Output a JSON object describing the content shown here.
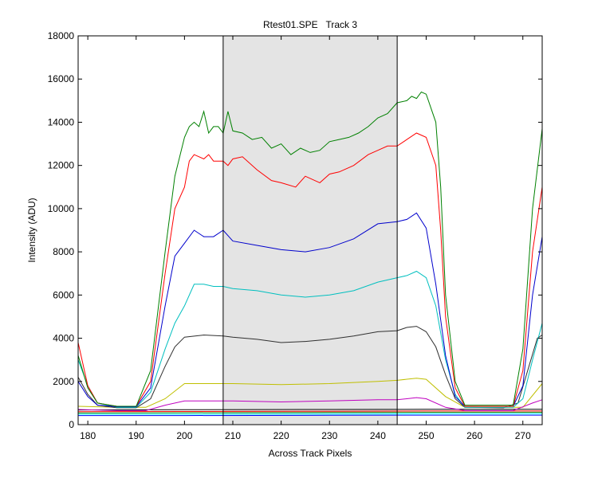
{
  "chart_data": {
    "type": "line",
    "title": "Rtest01.SPE   Track 3",
    "xlabel": "Across Track Pixels",
    "ylabel": "Intensity (ADU)",
    "xlim": [
      178,
      274
    ],
    "ylim": [
      0,
      18000
    ],
    "xticks": [
      180,
      190,
      200,
      210,
      220,
      230,
      240,
      250,
      260,
      270
    ],
    "yticks": [
      0,
      2000,
      4000,
      6000,
      8000,
      10000,
      12000,
      14000,
      16000,
      18000
    ],
    "grid": false,
    "shaded_region": [
      208,
      244
    ],
    "series": [
      {
        "color": "#0000ff",
        "points": [
          [
            178,
            420
          ],
          [
            200,
            420
          ],
          [
            230,
            430
          ],
          [
            250,
            440
          ],
          [
            274,
            440
          ]
        ]
      },
      {
        "color": "#00ffff",
        "points": [
          [
            178,
            480
          ],
          [
            200,
            480
          ],
          [
            230,
            490
          ],
          [
            250,
            500
          ],
          [
            274,
            500
          ]
        ]
      },
      {
        "color": "#008000",
        "points": [
          [
            178,
            540
          ],
          [
            200,
            550
          ],
          [
            230,
            560
          ],
          [
            250,
            570
          ],
          [
            274,
            570
          ]
        ]
      },
      {
        "color": "#ff0000",
        "points": [
          [
            178,
            600
          ],
          [
            200,
            610
          ],
          [
            230,
            620
          ],
          [
            250,
            630
          ],
          [
            274,
            630
          ]
        ]
      },
      {
        "color": "#000000",
        "points": [
          [
            178,
            680
          ],
          [
            200,
            690
          ],
          [
            230,
            700
          ],
          [
            250,
            710
          ],
          [
            274,
            710
          ]
        ]
      },
      {
        "color": "#bfbf00",
        "points": [
          [
            178,
            850
          ],
          [
            186,
            800
          ],
          [
            192,
            800
          ],
          [
            196,
            1200
          ],
          [
            200,
            1900
          ],
          [
            204,
            1900
          ],
          [
            210,
            1900
          ],
          [
            220,
            1850
          ],
          [
            230,
            1900
          ],
          [
            240,
            2000
          ],
          [
            244,
            2050
          ],
          [
            248,
            2150
          ],
          [
            250,
            2100
          ],
          [
            254,
            1300
          ],
          [
            258,
            800
          ],
          [
            266,
            800
          ],
          [
            270,
            800
          ],
          [
            274,
            1900
          ]
        ]
      },
      {
        "color": "#bf00bf",
        "points": [
          [
            178,
            700
          ],
          [
            186,
            650
          ],
          [
            192,
            650
          ],
          [
            196,
            900
          ],
          [
            200,
            1100
          ],
          [
            210,
            1100
          ],
          [
            220,
            1050
          ],
          [
            230,
            1100
          ],
          [
            240,
            1150
          ],
          [
            244,
            1150
          ],
          [
            248,
            1250
          ],
          [
            250,
            1200
          ],
          [
            254,
            800
          ],
          [
            258,
            650
          ],
          [
            268,
            650
          ],
          [
            272,
            1000
          ],
          [
            274,
            1150
          ]
        ]
      },
      {
        "color": "#303030",
        "points": [
          [
            178,
            2200
          ],
          [
            180,
            1400
          ],
          [
            182,
            900
          ],
          [
            186,
            780
          ],
          [
            190,
            780
          ],
          [
            193,
            1200
          ],
          [
            196,
            2700
          ],
          [
            198,
            3600
          ],
          [
            200,
            4050
          ],
          [
            204,
            4150
          ],
          [
            208,
            4100
          ],
          [
            210,
            4050
          ],
          [
            215,
            3950
          ],
          [
            220,
            3800
          ],
          [
            225,
            3850
          ],
          [
            230,
            3950
          ],
          [
            235,
            4100
          ],
          [
            240,
            4300
          ],
          [
            244,
            4350
          ],
          [
            246,
            4500
          ],
          [
            248,
            4550
          ],
          [
            250,
            4300
          ],
          [
            252,
            3600
          ],
          [
            254,
            2300
          ],
          [
            256,
            1200
          ],
          [
            258,
            800
          ],
          [
            266,
            780
          ],
          [
            269,
            1000
          ],
          [
            271,
            2500
          ],
          [
            273,
            4000
          ],
          [
            274,
            4150
          ]
        ]
      },
      {
        "color": "#00bfbf",
        "points": [
          [
            178,
            3000
          ],
          [
            180,
            1800
          ],
          [
            182,
            1000
          ],
          [
            186,
            800
          ],
          [
            190,
            800
          ],
          [
            193,
            1500
          ],
          [
            196,
            3500
          ],
          [
            198,
            4700
          ],
          [
            200,
            5500
          ],
          [
            202,
            6500
          ],
          [
            204,
            6500
          ],
          [
            206,
            6400
          ],
          [
            208,
            6400
          ],
          [
            210,
            6300
          ],
          [
            215,
            6200
          ],
          [
            220,
            6000
          ],
          [
            225,
            5900
          ],
          [
            230,
            6000
          ],
          [
            235,
            6200
          ],
          [
            240,
            6600
          ],
          [
            244,
            6800
          ],
          [
            246,
            6900
          ],
          [
            248,
            7100
          ],
          [
            250,
            6800
          ],
          [
            252,
            5500
          ],
          [
            254,
            3000
          ],
          [
            256,
            1400
          ],
          [
            258,
            800
          ],
          [
            268,
            800
          ],
          [
            270,
            1200
          ],
          [
            272,
            3000
          ],
          [
            274,
            4700
          ]
        ]
      },
      {
        "color": "#0000cc",
        "points": [
          [
            178,
            2000
          ],
          [
            180,
            1300
          ],
          [
            182,
            900
          ],
          [
            186,
            830
          ],
          [
            190,
            830
          ],
          [
            193,
            1700
          ],
          [
            196,
            5500
          ],
          [
            198,
            7800
          ],
          [
            200,
            8400
          ],
          [
            202,
            9000
          ],
          [
            204,
            8700
          ],
          [
            206,
            8700
          ],
          [
            208,
            9000
          ],
          [
            210,
            8500
          ],
          [
            215,
            8300
          ],
          [
            220,
            8100
          ],
          [
            225,
            8000
          ],
          [
            230,
            8200
          ],
          [
            235,
            8600
          ],
          [
            240,
            9300
          ],
          [
            244,
            9400
          ],
          [
            246,
            9500
          ],
          [
            248,
            9800
          ],
          [
            250,
            9100
          ],
          [
            252,
            6500
          ],
          [
            254,
            3200
          ],
          [
            256,
            1300
          ],
          [
            258,
            850
          ],
          [
            268,
            850
          ],
          [
            270,
            1800
          ],
          [
            272,
            6000
          ],
          [
            274,
            8700
          ]
        ]
      },
      {
        "color": "#ff0000",
        "points": [
          [
            178,
            3800
          ],
          [
            180,
            1800
          ],
          [
            182,
            1000
          ],
          [
            186,
            850
          ],
          [
            190,
            850
          ],
          [
            193,
            2000
          ],
          [
            196,
            7000
          ],
          [
            198,
            10000
          ],
          [
            200,
            11000
          ],
          [
            201,
            12200
          ],
          [
            202,
            12500
          ],
          [
            204,
            12300
          ],
          [
            205,
            12500
          ],
          [
            206,
            12200
          ],
          [
            208,
            12200
          ],
          [
            209,
            12000
          ],
          [
            210,
            12300
          ],
          [
            212,
            12400
          ],
          [
            215,
            11800
          ],
          [
            218,
            11300
          ],
          [
            220,
            11200
          ],
          [
            223,
            11000
          ],
          [
            225,
            11500
          ],
          [
            228,
            11200
          ],
          [
            230,
            11600
          ],
          [
            232,
            11700
          ],
          [
            235,
            12000
          ],
          [
            238,
            12500
          ],
          [
            240,
            12700
          ],
          [
            242,
            12900
          ],
          [
            244,
            12900
          ],
          [
            246,
            13200
          ],
          [
            248,
            13500
          ],
          [
            250,
            13300
          ],
          [
            252,
            12000
          ],
          [
            253,
            9000
          ],
          [
            254,
            5000
          ],
          [
            256,
            1700
          ],
          [
            258,
            850
          ],
          [
            268,
            850
          ],
          [
            270,
            2500
          ],
          [
            272,
            8000
          ],
          [
            274,
            11000
          ]
        ]
      },
      {
        "color": "#008000",
        "points": [
          [
            178,
            3200
          ],
          [
            180,
            1700
          ],
          [
            182,
            1000
          ],
          [
            186,
            850
          ],
          [
            190,
            850
          ],
          [
            193,
            2500
          ],
          [
            196,
            8000
          ],
          [
            198,
            11500
          ],
          [
            200,
            13300
          ],
          [
            201,
            13800
          ],
          [
            202,
            14000
          ],
          [
            203,
            13800
          ],
          [
            204,
            14500
          ],
          [
            205,
            13500
          ],
          [
            206,
            13800
          ],
          [
            207,
            13800
          ],
          [
            208,
            13500
          ],
          [
            209,
            14500
          ],
          [
            210,
            13600
          ],
          [
            212,
            13500
          ],
          [
            214,
            13200
          ],
          [
            216,
            13300
          ],
          [
            218,
            12800
          ],
          [
            220,
            13000
          ],
          [
            222,
            12500
          ],
          [
            224,
            12800
          ],
          [
            226,
            12600
          ],
          [
            228,
            12700
          ],
          [
            230,
            13100
          ],
          [
            232,
            13200
          ],
          [
            234,
            13300
          ],
          [
            236,
            13500
          ],
          [
            238,
            13800
          ],
          [
            240,
            14200
          ],
          [
            242,
            14400
          ],
          [
            244,
            14900
          ],
          [
            246,
            15000
          ],
          [
            247,
            15200
          ],
          [
            248,
            15100
          ],
          [
            249,
            15400
          ],
          [
            250,
            15300
          ],
          [
            252,
            14000
          ],
          [
            253,
            11000
          ],
          [
            254,
            6000
          ],
          [
            256,
            2000
          ],
          [
            258,
            900
          ],
          [
            268,
            900
          ],
          [
            270,
            3500
          ],
          [
            272,
            10000
          ],
          [
            274,
            13700
          ]
        ]
      }
    ]
  }
}
